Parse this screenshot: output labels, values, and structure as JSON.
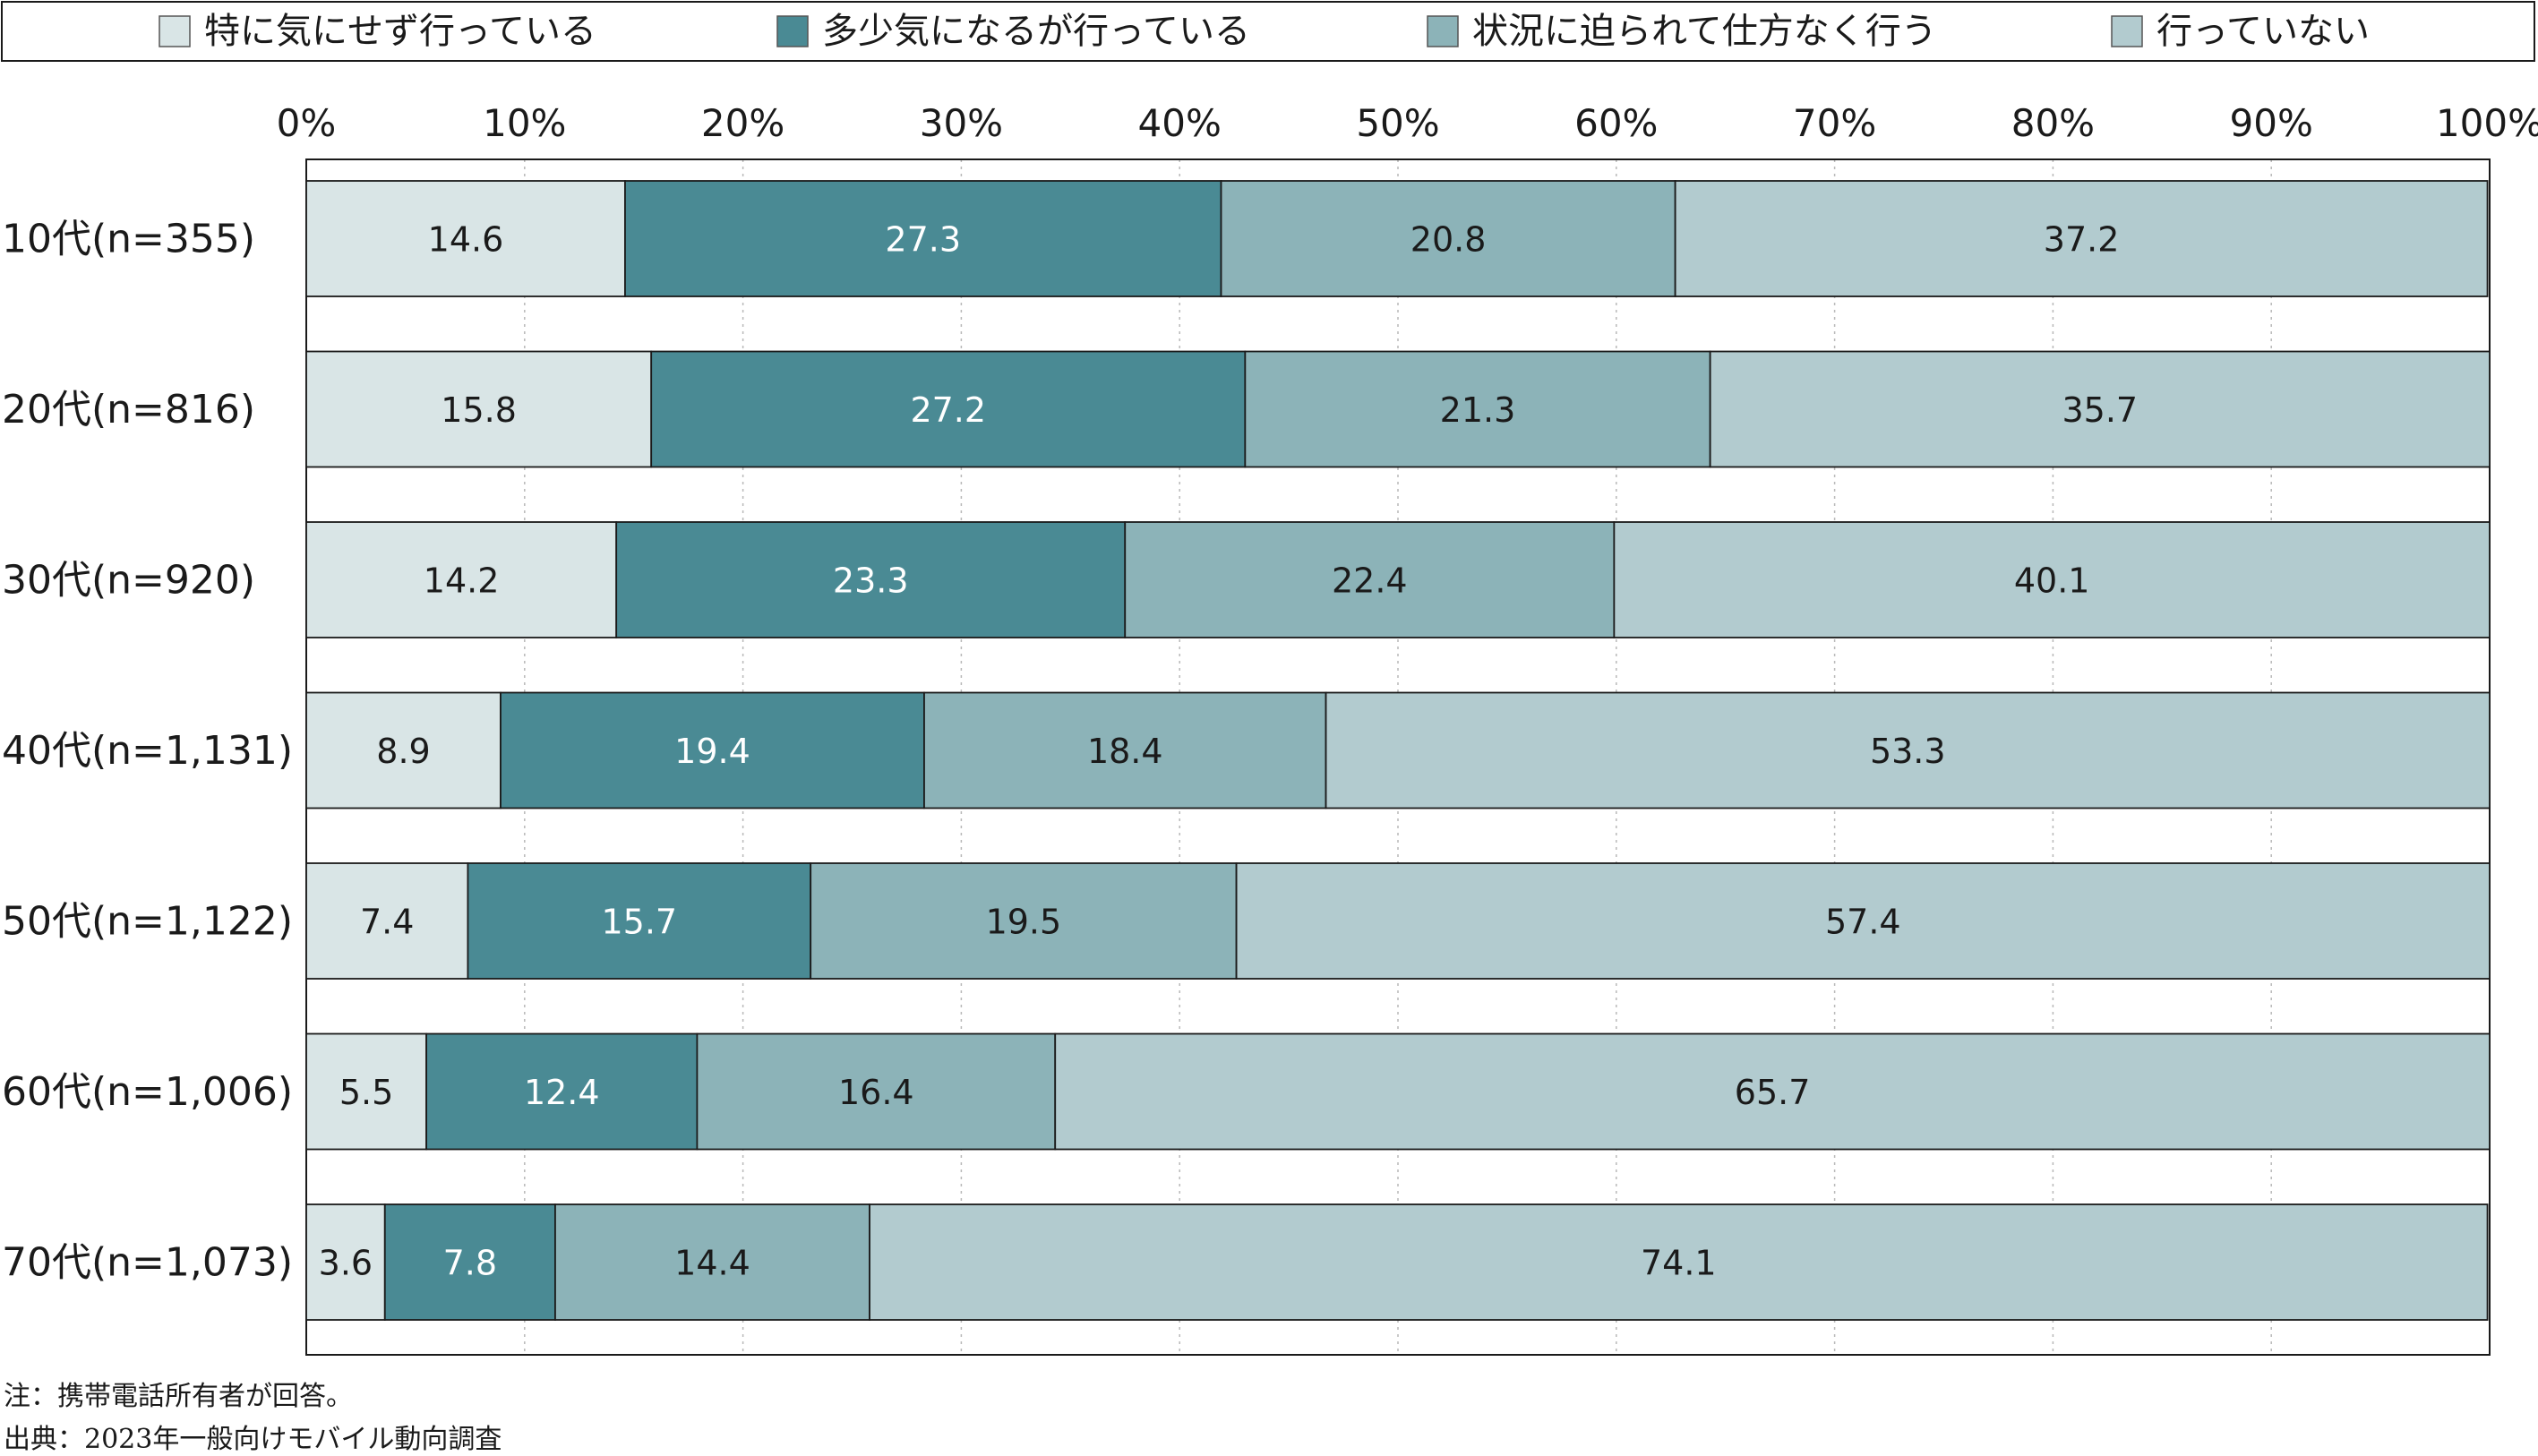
{
  "chart_data": {
    "type": "bar",
    "orientation": "horizontal",
    "stacked": true,
    "percent": true,
    "xlim": [
      0,
      100
    ],
    "xticks": [
      "0%",
      "10%",
      "20%",
      "30%",
      "40%",
      "50%",
      "60%",
      "70%",
      "80%",
      "90%",
      "100%"
    ],
    "categories": [
      "10代(n=355)",
      "20代(n=816)",
      "30代(n=920)",
      "40代(n=1,131)",
      "50代(n=1,122)",
      "60代(n=1,006)",
      "70代(n=1,073)"
    ],
    "series": [
      {
        "name": "特に気にせず行っている",
        "color": "#d9e5e6",
        "values": [
          14.6,
          15.8,
          14.2,
          8.9,
          7.4,
          5.5,
          3.6
        ]
      },
      {
        "name": "多少気になるが行っている",
        "color": "#4a8a94",
        "values": [
          27.3,
          27.2,
          23.3,
          19.4,
          15.7,
          12.4,
          7.8
        ]
      },
      {
        "name": "状況に迫られて仕方なく行う",
        "color": "#8cb3b8",
        "values": [
          20.8,
          21.3,
          22.4,
          18.4,
          19.5,
          16.4,
          14.4
        ]
      },
      {
        "name": "行っていない",
        "color": "#b2cbcf",
        "values": [
          37.2,
          35.7,
          40.1,
          53.3,
          57.4,
          65.7,
          74.1
        ]
      }
    ],
    "grid": true,
    "legend_position": "top"
  },
  "notes": {
    "note": "注：携帯電話所有者が回答。",
    "source": "出典：2023年一般向けモバイル動向調査"
  }
}
